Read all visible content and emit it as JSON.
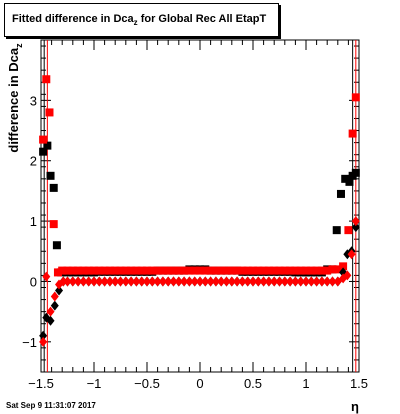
{
  "chart_data": {
    "type": "scatter",
    "title_main": "Fitted difference in Dca",
    "title_sub": "z",
    "title_rest": " for Global Rec All EtapT",
    "xlabel": "η",
    "ylabel_main": "difference in Dca",
    "ylabel_sub": "z",
    "xlim": [
      -1.5,
      1.5
    ],
    "ylim": [
      -1.5,
      4.0
    ],
    "x_ticks": [
      -1.5,
      -1,
      -0.5,
      0,
      0.5,
      1,
      1.5
    ],
    "x_tick_labels": [
      "−1.5",
      "−1",
      "−0.5",
      "0",
      "0.5",
      "1",
      "1.5"
    ],
    "y_ticks": [
      -1,
      0,
      1,
      2,
      3
    ],
    "y_tick_labels": [
      "−1",
      "0",
      "1",
      "2",
      "3"
    ],
    "series": [
      {
        "color": "#000000",
        "marker": "square",
        "x": [
          -1.48,
          -1.44,
          -1.41,
          -1.38,
          -1.35,
          -1.31,
          -1.25,
          -1.2,
          -1.15,
          -1.1,
          -1.05,
          -1.0,
          -0.95,
          -0.9,
          -0.85,
          -0.8,
          -0.75,
          -0.7,
          -0.65,
          -0.6,
          -0.55,
          -0.5,
          -0.45,
          -0.4,
          -0.35,
          -0.3,
          -0.25,
          -0.2,
          -0.15,
          -0.1,
          -0.05,
          0.0,
          0.05,
          0.1,
          0.15,
          0.2,
          0.25,
          0.3,
          0.35,
          0.4,
          0.45,
          0.5,
          0.55,
          0.6,
          0.65,
          0.7,
          0.75,
          0.8,
          0.85,
          0.9,
          0.95,
          1.0,
          1.05,
          1.1,
          1.15,
          1.2,
          1.25,
          1.29,
          1.33,
          1.37,
          1.41,
          1.44,
          1.47
        ],
        "y": [
          2.15,
          2.25,
          1.75,
          1.55,
          0.6,
          0.15,
          0.15,
          0.15,
          0.15,
          0.15,
          0.15,
          0.15,
          0.16,
          0.16,
          0.16,
          0.16,
          0.16,
          0.16,
          0.16,
          0.16,
          0.16,
          0.16,
          0.16,
          0.18,
          0.18,
          0.18,
          0.18,
          0.18,
          0.18,
          0.2,
          0.2,
          0.2,
          0.2,
          0.18,
          0.18,
          0.18,
          0.18,
          0.18,
          0.18,
          0.16,
          0.16,
          0.16,
          0.16,
          0.16,
          0.16,
          0.16,
          0.16,
          0.16,
          0.16,
          0.15,
          0.15,
          0.15,
          0.15,
          0.15,
          0.15,
          0.2,
          0.2,
          0.85,
          1.45,
          1.7,
          1.65,
          1.75,
          1.8
        ]
      },
      {
        "color": "#ff0000",
        "marker": "square",
        "x": [
          -1.48,
          -1.45,
          -1.42,
          -1.38,
          -1.34,
          -1.3,
          -1.25,
          -1.2,
          -1.15,
          -1.1,
          -1.05,
          -1.0,
          -0.95,
          -0.9,
          -0.85,
          -0.8,
          -0.75,
          -0.7,
          -0.65,
          -0.6,
          -0.55,
          -0.5,
          -0.45,
          -0.4,
          -0.35,
          -0.3,
          -0.25,
          -0.2,
          -0.15,
          -0.1,
          -0.05,
          0.0,
          0.05,
          0.1,
          0.15,
          0.2,
          0.25,
          0.3,
          0.35,
          0.4,
          0.45,
          0.5,
          0.55,
          0.6,
          0.65,
          0.7,
          0.75,
          0.8,
          0.85,
          0.9,
          0.95,
          1.0,
          1.05,
          1.1,
          1.15,
          1.2,
          1.25,
          1.3,
          1.35,
          1.4,
          1.44,
          1.47
        ],
        "y": [
          2.35,
          3.35,
          2.8,
          0.95,
          0.15,
          0.18,
          0.18,
          0.18,
          0.18,
          0.18,
          0.18,
          0.18,
          0.18,
          0.18,
          0.18,
          0.18,
          0.18,
          0.18,
          0.18,
          0.18,
          0.18,
          0.18,
          0.18,
          0.18,
          0.18,
          0.18,
          0.18,
          0.18,
          0.18,
          0.18,
          0.18,
          0.18,
          0.18,
          0.18,
          0.18,
          0.18,
          0.18,
          0.18,
          0.18,
          0.18,
          0.18,
          0.18,
          0.18,
          0.18,
          0.18,
          0.18,
          0.18,
          0.18,
          0.18,
          0.18,
          0.18,
          0.18,
          0.18,
          0.18,
          0.18,
          0.18,
          0.2,
          0.2,
          0.25,
          0.85,
          2.45,
          3.05
        ]
      },
      {
        "color": "#000000",
        "marker": "diamond",
        "x": [
          -1.48,
          -1.45,
          -1.41,
          -1.37,
          -1.33,
          -1.29,
          -1.25,
          -1.2,
          -1.15,
          -1.1,
          -1.05,
          -1.0,
          -0.95,
          -0.9,
          -0.85,
          -0.8,
          -0.75,
          -0.7,
          -0.65,
          -0.6,
          -0.55,
          -0.5,
          -0.45,
          -0.4,
          -0.35,
          -0.3,
          -0.25,
          -0.2,
          -0.15,
          -0.1,
          -0.05,
          0.0,
          0.05,
          0.1,
          0.15,
          0.2,
          0.25,
          0.3,
          0.35,
          0.4,
          0.45,
          0.5,
          0.55,
          0.6,
          0.65,
          0.7,
          0.75,
          0.8,
          0.85,
          0.9,
          0.95,
          1.0,
          1.05,
          1.1,
          1.15,
          1.2,
          1.25,
          1.3,
          1.35,
          1.39,
          1.43,
          1.47
        ],
        "y": [
          -0.9,
          -0.6,
          -0.65,
          -0.4,
          -0.15,
          0.0,
          0.0,
          0.0,
          0.0,
          0.0,
          0.0,
          0.0,
          0.0,
          0.0,
          0.0,
          0.0,
          0.0,
          0.0,
          0.0,
          0.0,
          0.0,
          0.0,
          0.0,
          0.0,
          0.0,
          0.0,
          0.0,
          0.0,
          0.0,
          0.0,
          0.0,
          0.0,
          0.0,
          0.0,
          0.0,
          0.0,
          0.0,
          0.0,
          0.0,
          0.0,
          0.0,
          0.0,
          0.0,
          0.0,
          0.0,
          0.0,
          0.0,
          0.0,
          0.0,
          0.0,
          0.0,
          0.0,
          0.0,
          0.0,
          0.0,
          0.0,
          0.0,
          0.0,
          0.15,
          0.45,
          0.5,
          0.9
        ]
      },
      {
        "color": "#ff0000",
        "marker": "diamond",
        "x": [
          -1.48,
          -1.45,
          -1.41,
          -1.37,
          -1.33,
          -1.29,
          -1.25,
          -1.2,
          -1.15,
          -1.1,
          -1.05,
          -1.0,
          -0.95,
          -0.9,
          -0.85,
          -0.8,
          -0.75,
          -0.7,
          -0.65,
          -0.6,
          -0.55,
          -0.5,
          -0.45,
          -0.4,
          -0.35,
          -0.3,
          -0.25,
          -0.2,
          -0.15,
          -0.1,
          -0.05,
          0.0,
          0.05,
          0.1,
          0.15,
          0.2,
          0.25,
          0.3,
          0.35,
          0.4,
          0.45,
          0.5,
          0.55,
          0.6,
          0.65,
          0.7,
          0.75,
          0.8,
          0.85,
          0.9,
          0.95,
          1.0,
          1.05,
          1.1,
          1.15,
          1.2,
          1.25,
          1.3,
          1.35,
          1.39,
          1.43,
          1.47
        ],
        "y": [
          -1.0,
          0.08,
          -0.5,
          -0.25,
          -0.05,
          0.0,
          0.0,
          0.0,
          0.0,
          0.0,
          0.0,
          0.0,
          0.0,
          0.0,
          0.0,
          0.0,
          0.0,
          0.0,
          0.0,
          0.0,
          0.0,
          0.0,
          0.0,
          0.0,
          0.0,
          0.0,
          0.0,
          0.0,
          0.0,
          0.0,
          0.0,
          0.0,
          0.0,
          0.0,
          0.0,
          0.0,
          0.0,
          0.0,
          0.0,
          0.0,
          0.0,
          0.0,
          0.0,
          0.0,
          0.0,
          0.0,
          0.0,
          0.0,
          0.0,
          0.0,
          0.0,
          0.0,
          0.0,
          0.0,
          0.0,
          0.0,
          0.0,
          0.0,
          0.05,
          0.1,
          0.45,
          1.0
        ]
      }
    ],
    "grid": false,
    "timestamp": "Sat Sep  9 11:31:07 2017"
  }
}
